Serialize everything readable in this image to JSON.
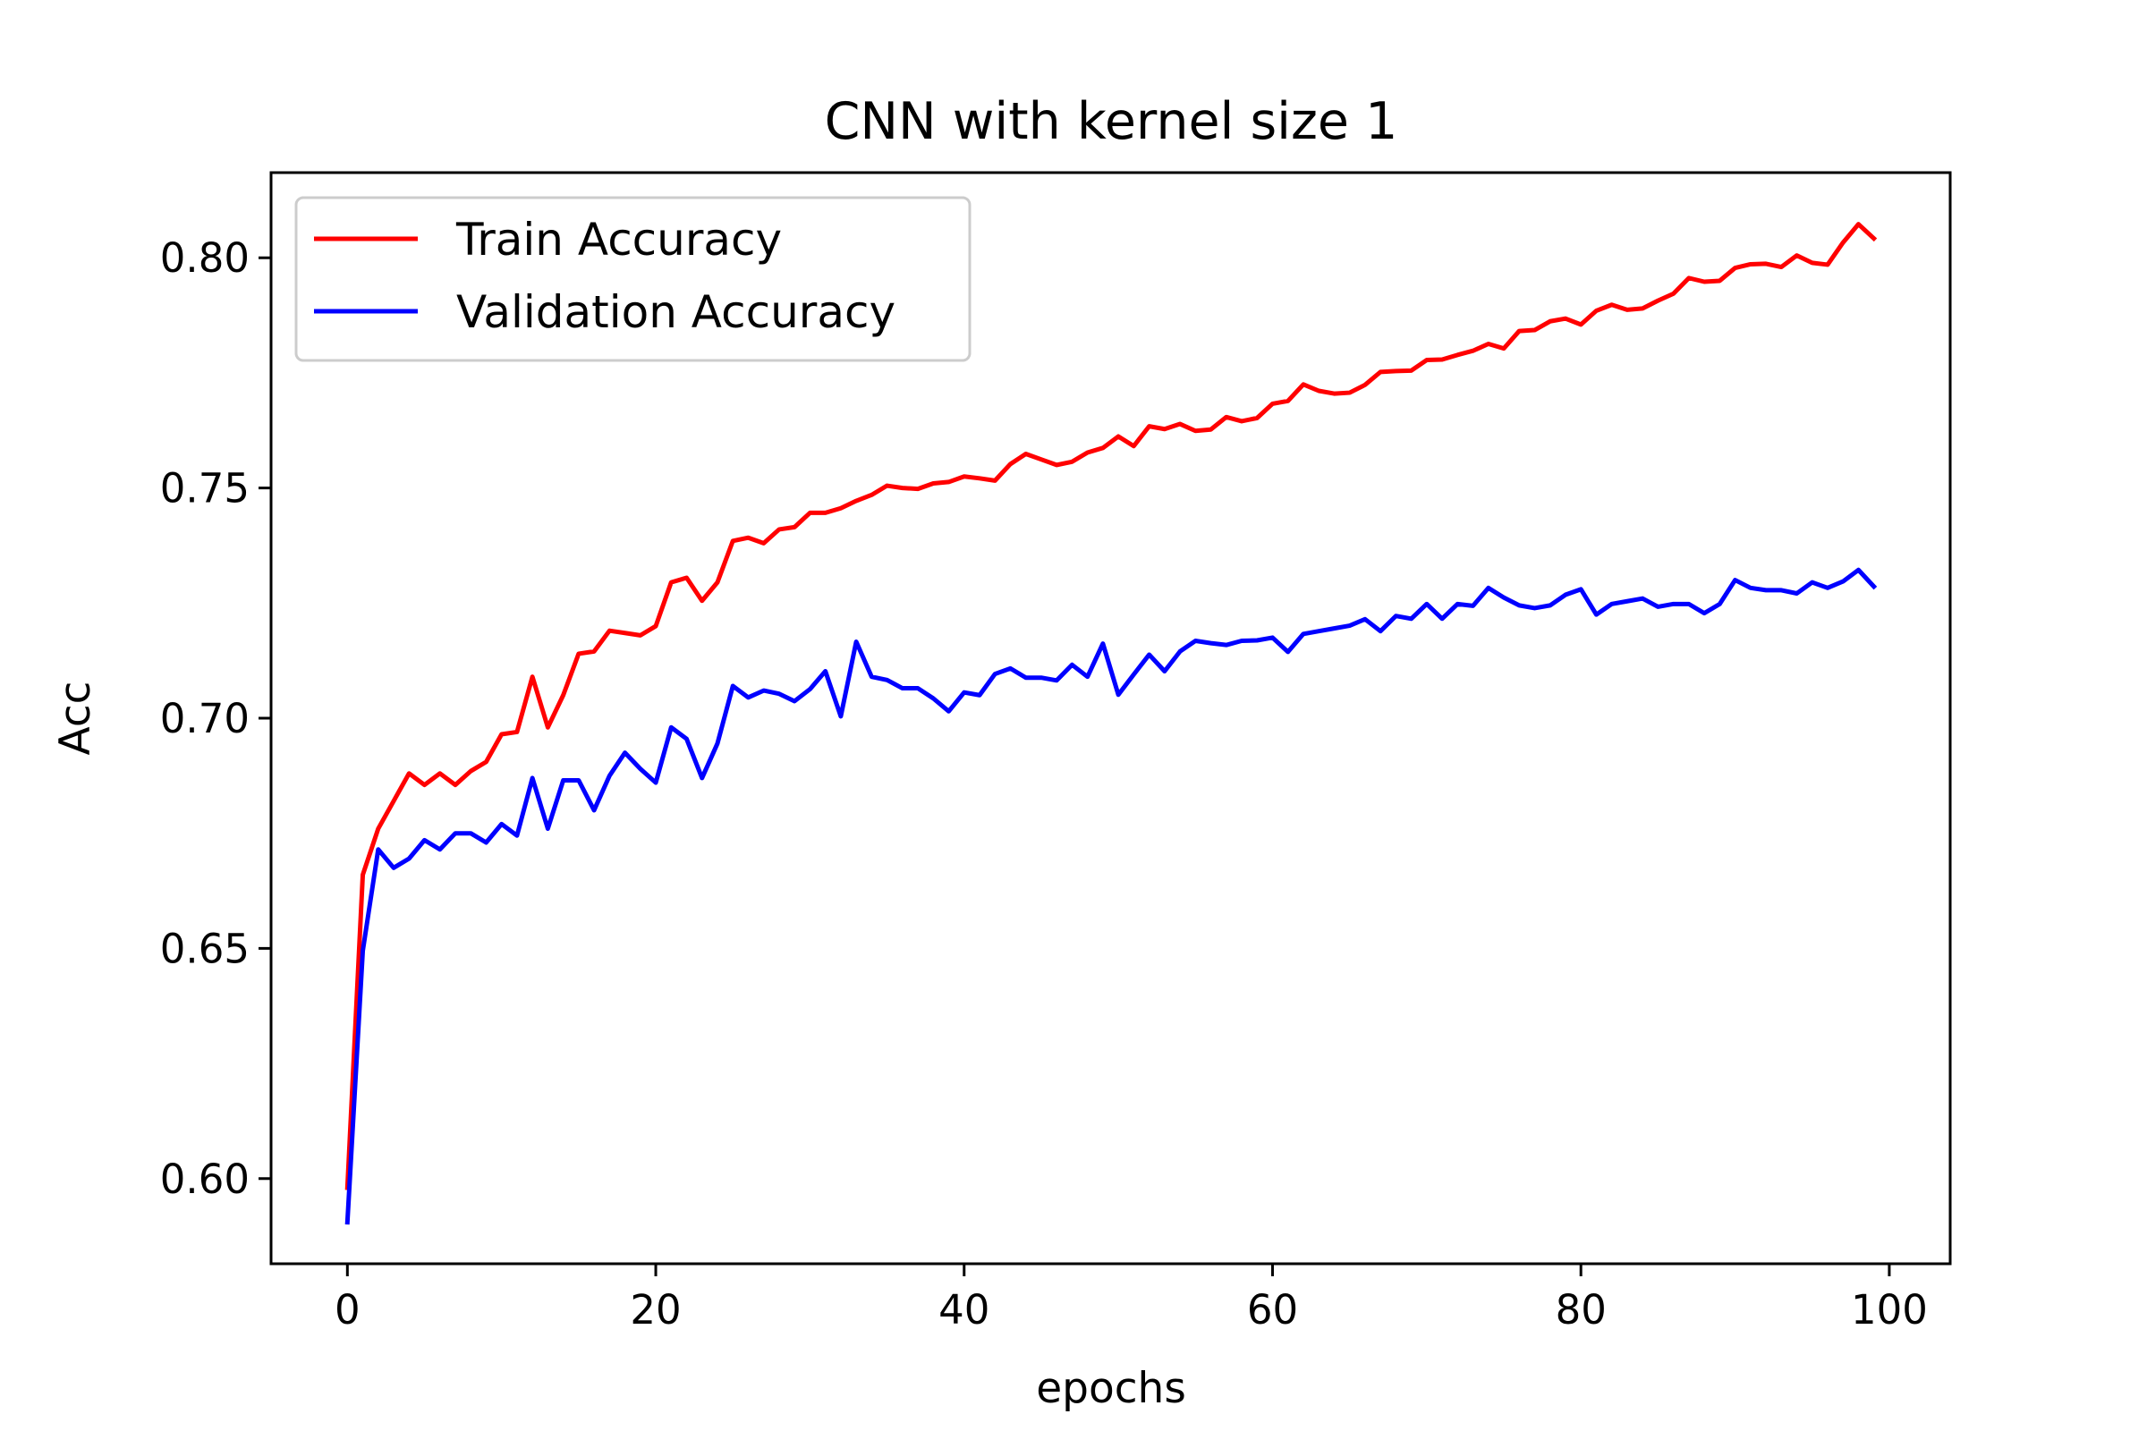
{
  "chart_data": {
    "type": "line",
    "title": "CNN with kernel size 1",
    "xlabel": "epochs",
    "ylabel": "Acc",
    "xlim": [
      -4.95,
      103.95
    ],
    "ylim": [
      0.5815,
      0.8185
    ],
    "xticks": [
      0,
      20,
      40,
      60,
      80,
      100
    ],
    "yticks": [
      0.6,
      0.65,
      0.7,
      0.75,
      0.8
    ],
    "xtick_labels": [
      "0",
      "20",
      "40",
      "60",
      "80",
      "100"
    ],
    "ytick_labels": [
      "0.60",
      "0.65",
      "0.70",
      "0.75",
      "0.80"
    ],
    "grid": false,
    "legend_position": "upper-left",
    "series": [
      {
        "name": "Train Accuracy",
        "color": "#ff0000",
        "x_start": 0,
        "values": [
          0.598,
          0.666,
          0.676,
          0.682,
          0.688,
          0.6855,
          0.688,
          0.6855,
          0.6885,
          0.6905,
          0.6965,
          0.697,
          0.709,
          0.698,
          0.705,
          0.714,
          0.7145,
          0.719,
          0.7185,
          0.718,
          0.72,
          0.7295,
          0.7305,
          0.7255,
          0.7295,
          0.7385,
          0.7392,
          0.738,
          0.741,
          0.7415,
          0.7446,
          0.7446,
          0.7456,
          0.7472,
          0.7485,
          0.7505,
          0.75,
          0.7498,
          0.751,
          0.7513,
          0.7525,
          0.7521,
          0.7516,
          0.7552,
          0.7574,
          0.7562,
          0.755,
          0.7557,
          0.7577,
          0.7587,
          0.7612,
          0.7591,
          0.7634,
          0.7628,
          0.7639,
          0.7624,
          0.7627,
          0.7654,
          0.7645,
          0.7652,
          0.7683,
          0.7689,
          0.7725,
          0.7711,
          0.7705,
          0.7707,
          0.7724,
          0.7752,
          0.7754,
          0.7755,
          0.7778,
          0.7779,
          0.7789,
          0.7798,
          0.7813,
          0.7803,
          0.7841,
          0.7843,
          0.7862,
          0.7868,
          0.7855,
          0.7885,
          0.7898,
          0.7887,
          0.789,
          0.7907,
          0.7922,
          0.7956,
          0.7948,
          0.795,
          0.7978,
          0.7986,
          0.7987,
          0.798,
          0.8005,
          0.7989,
          0.7985,
          0.8033,
          0.8073,
          0.8042
        ]
      },
      {
        "name": "Validation Accuracy",
        "color": "#0000ff",
        "x_start": 0,
        "values": [
          0.5905,
          0.6495,
          0.6715,
          0.6675,
          0.6695,
          0.6735,
          0.6715,
          0.675,
          0.675,
          0.673,
          0.677,
          0.6745,
          0.687,
          0.676,
          0.6865,
          0.6865,
          0.68,
          0.6875,
          0.6925,
          0.689,
          0.686,
          0.698,
          0.6955,
          0.687,
          0.6945,
          0.707,
          0.7045,
          0.706,
          0.7053,
          0.7037,
          0.7063,
          0.7102,
          0.7004,
          0.7166,
          0.709,
          0.7083,
          0.7065,
          0.7065,
          0.7043,
          0.7015,
          0.7056,
          0.705,
          0.7096,
          0.7108,
          0.7088,
          0.7088,
          0.7082,
          0.7116,
          0.709,
          0.7162,
          0.7051,
          0.7095,
          0.7138,
          0.7102,
          0.7145,
          0.7168,
          0.7163,
          0.7159,
          0.7168,
          0.7169,
          0.7175,
          0.7144,
          0.7183,
          0.7189,
          0.7195,
          0.7201,
          0.7215,
          0.7189,
          0.7222,
          0.7216,
          0.7248,
          0.7216,
          0.7248,
          0.7244,
          0.7283,
          0.7262,
          0.7245,
          0.7239,
          0.7245,
          0.7268,
          0.728,
          0.7225,
          0.7248,
          0.7254,
          0.726,
          0.7242,
          0.7248,
          0.7248,
          0.7228,
          0.7248,
          0.73,
          0.7283,
          0.7278,
          0.7278,
          0.7271,
          0.7295,
          0.7283,
          0.7297,
          0.7322,
          0.7286
        ]
      }
    ]
  }
}
